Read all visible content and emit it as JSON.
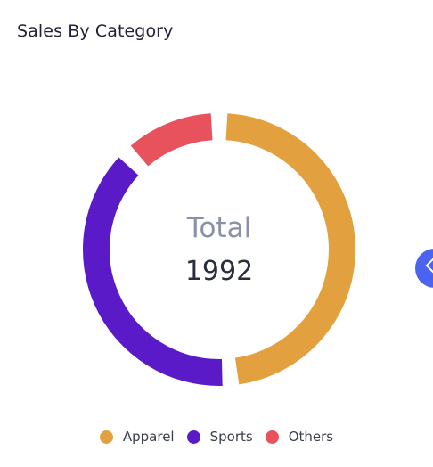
{
  "card": {
    "title": "Sales By Category"
  },
  "center": {
    "label": "Total",
    "value": "1992"
  },
  "chart_data": {
    "type": "pie",
    "variant": "donut",
    "categories": [
      "Apparel",
      "Sports",
      "Others"
    ],
    "values": [
      969,
      780,
      243
    ],
    "colors": [
      "#e3a03f",
      "#5a1ac7",
      "#e8525c"
    ],
    "total": 1992,
    "legend_position": "bottom"
  },
  "legend": {
    "items": [
      {
        "label": "Apparel",
        "color": "#e3a03f"
      },
      {
        "label": "Sports",
        "color": "#5a1ac7"
      },
      {
        "label": "Others",
        "color": "#e8525c"
      }
    ]
  },
  "fab": {
    "icon": "chevron-left-icon",
    "color": "#4a64f0"
  }
}
